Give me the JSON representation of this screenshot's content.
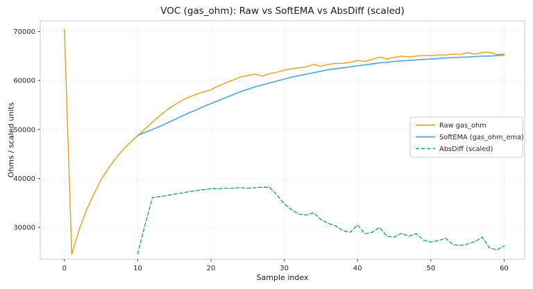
{
  "chart_data": {
    "type": "line",
    "title": "VOC (gas_ohm): Raw vs SoftEMA vs AbsDiff (scaled)",
    "xlabel": "Sample index",
    "ylabel": "Ohms / scaled units",
    "xlim": [
      -3.3,
      62.8
    ],
    "ylim": [
      23500,
      72200
    ],
    "xticks": [
      0,
      10,
      20,
      30,
      40,
      50,
      60
    ],
    "yticks": [
      30000,
      40000,
      50000,
      60000,
      70000
    ],
    "grid": true,
    "legend_position": "center right",
    "x": [
      0,
      1,
      2,
      3,
      4,
      5,
      6,
      7,
      8,
      9,
      10,
      11,
      12,
      13,
      14,
      15,
      16,
      17,
      18,
      19,
      20,
      21,
      22,
      23,
      24,
      25,
      26,
      27,
      28,
      29,
      30,
      31,
      32,
      33,
      34,
      35,
      36,
      37,
      38,
      39,
      40,
      41,
      42,
      43,
      44,
      45,
      46,
      47,
      48,
      49,
      50,
      51,
      52,
      53,
      54,
      55,
      56,
      57,
      58,
      59,
      60
    ],
    "series": [
      {
        "name": "Raw gas_ohm",
        "color": "#e2a421",
        "style": "solid",
        "width": 1.5,
        "values": [
          70500,
          24500,
          29500,
          33500,
          36800,
          39700,
          42100,
          44100,
          45900,
          47400,
          48700,
          50100,
          51500,
          52800,
          54000,
          55000,
          55900,
          56600,
          57200,
          57700,
          58100,
          58900,
          59500,
          60100,
          60700,
          61000,
          61300,
          60900,
          61400,
          61700,
          62100,
          62400,
          62600,
          62800,
          63300,
          62900,
          63300,
          63500,
          63500,
          63700,
          64100,
          63900,
          64300,
          64800,
          64400,
          64700,
          65000,
          64800,
          65000,
          65100,
          65100,
          65200,
          65200,
          65400,
          65300,
          65700,
          65400,
          65700,
          65800,
          65300,
          65400
        ]
      },
      {
        "name": "SoftEMA (gas_ohm_ema)",
        "color": "#5bacd8",
        "style": "solid",
        "width": 1.8,
        "values": [
          null,
          null,
          null,
          null,
          null,
          null,
          null,
          null,
          null,
          null,
          48800,
          49400,
          50000,
          50600,
          51300,
          52000,
          52700,
          53400,
          54000,
          54700,
          55300,
          55900,
          56500,
          57100,
          57700,
          58200,
          58700,
          59100,
          59500,
          59900,
          60300,
          60700,
          61000,
          61300,
          61600,
          61900,
          62200,
          62400,
          62600,
          62800,
          63000,
          63200,
          63400,
          63600,
          63700,
          63900,
          64000,
          64100,
          64200,
          64300,
          64400,
          64500,
          64600,
          64700,
          64750,
          64800,
          64900,
          64950,
          65000,
          65100,
          65200
        ]
      },
      {
        "name": "AbsDiff (scaled)",
        "color": "#0c9c6e",
        "style": "dashed",
        "width": 1.3,
        "values": [
          null,
          null,
          null,
          null,
          null,
          null,
          null,
          null,
          null,
          null,
          24600,
          30500,
          36100,
          36300,
          36500,
          36800,
          37000,
          37300,
          37500,
          37700,
          37900,
          37900,
          38000,
          38000,
          38100,
          38000,
          38100,
          38200,
          38200,
          36600,
          34800,
          33600,
          32700,
          32500,
          33000,
          31600,
          30800,
          30300,
          29300,
          29000,
          30500,
          28700,
          29000,
          30000,
          28200,
          28000,
          28800,
          28200,
          28700,
          27400,
          27000,
          27300,
          27800,
          26500,
          26300,
          26600,
          27100,
          28000,
          25800,
          25400,
          26200
        ]
      }
    ]
  }
}
